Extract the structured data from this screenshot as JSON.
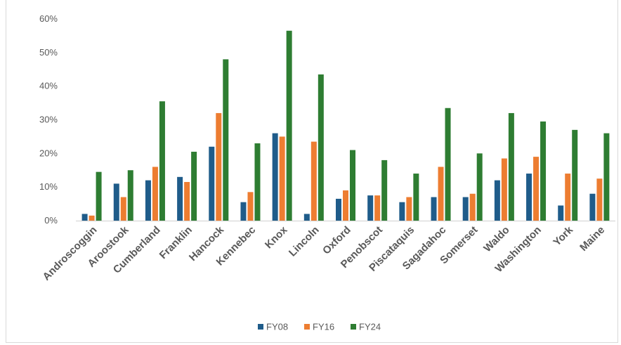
{
  "chart_data": {
    "type": "bar",
    "title": "",
    "xlabel": "",
    "ylabel": "",
    "ylim": [
      0,
      60
    ],
    "yticks": [
      "0%",
      "10%",
      "20%",
      "30%",
      "40%",
      "50%",
      "60%"
    ],
    "grid": false,
    "legend_position": "bottom",
    "categories": [
      "Androscoggin",
      "Aroostook",
      "Cumberland",
      "Franklin",
      "Hancock",
      "Kennebec",
      "Knox",
      "Lincoln",
      "Oxford",
      "Penobscot",
      "Piscataquis",
      "Sagadahoc",
      "Somerset",
      "Waldo",
      "Washington",
      "York",
      "Maine"
    ],
    "series": [
      {
        "name": "FY08",
        "color": "#1f5c8a",
        "values": [
          2,
          11,
          12,
          13,
          22,
          5.5,
          26,
          2,
          6.5,
          7.5,
          5.5,
          7,
          7,
          12,
          14,
          4.5,
          8
        ]
      },
      {
        "name": "FY16",
        "color": "#ed7d31",
        "values": [
          1.5,
          7,
          16,
          11.5,
          32,
          8.5,
          25,
          23.5,
          9,
          7.5,
          7,
          16,
          8,
          18.5,
          19,
          14,
          12.5
        ]
      },
      {
        "name": "FY24",
        "color": "#2e7d32",
        "values": [
          14.5,
          15,
          35.5,
          20.5,
          48,
          23,
          56.5,
          43.5,
          21,
          18,
          14,
          33.5,
          20,
          32,
          29.5,
          27,
          26
        ]
      }
    ]
  }
}
